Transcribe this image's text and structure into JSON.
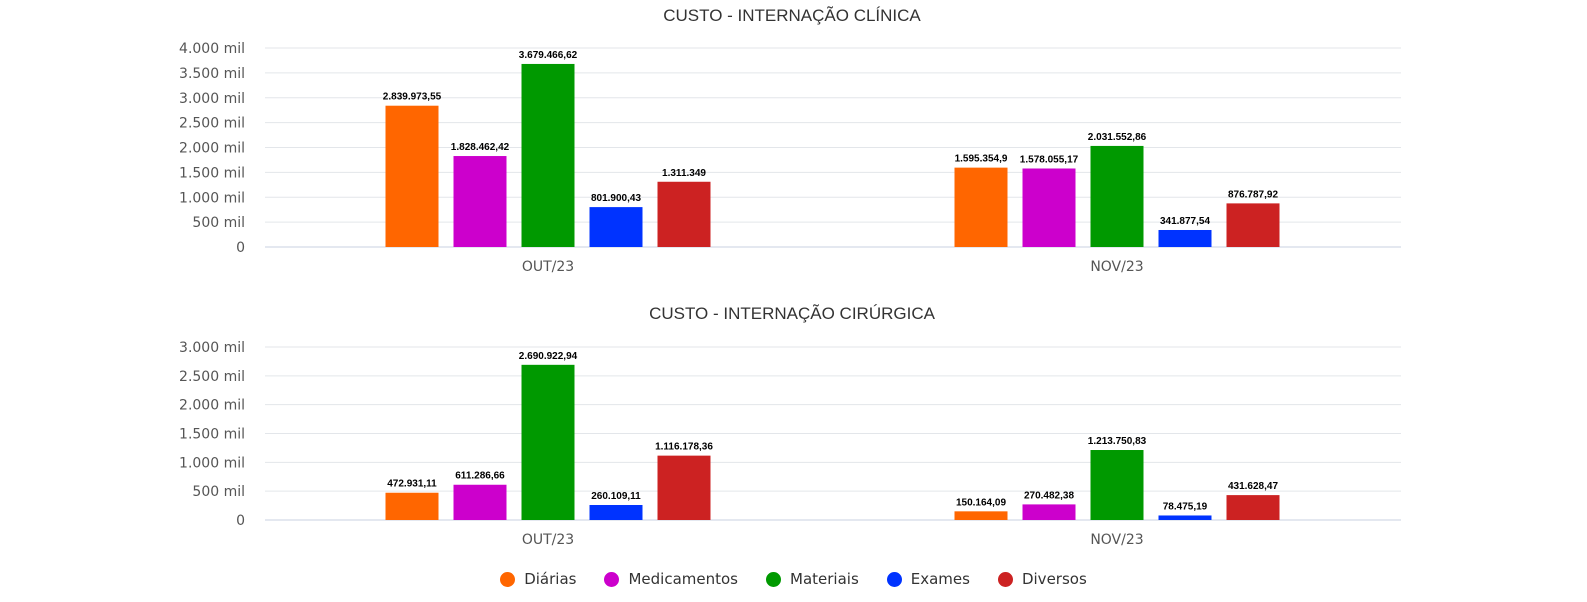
{
  "legend": [
    {
      "name": "Diárias",
      "color": "#ff6600"
    },
    {
      "name": "Medicamentos",
      "color": "#cc00cc"
    },
    {
      "name": "Materiais",
      "color": "#009900"
    },
    {
      "name": "Exames",
      "color": "#0033ff"
    },
    {
      "name": "Diversos",
      "color": "#cc2222"
    }
  ],
  "chart_data": [
    {
      "type": "bar",
      "title": "CUSTO - INTERNAÇÃO CLÍNICA",
      "categories": [
        "OUT/23",
        "NOV/23"
      ],
      "ylim": [
        0,
        4000000
      ],
      "yticks": [
        0,
        500000,
        1000000,
        1500000,
        2000000,
        2500000,
        3000000,
        3500000,
        4000000
      ],
      "ytick_labels": [
        "0",
        "500 mil",
        "1.000 mil",
        "1.500 mil",
        "2.000 mil",
        "2.500 mil",
        "3.000 mil",
        "3.500 mil",
        "4.000 mil"
      ],
      "grid": true,
      "series": [
        {
          "name": "Diárias",
          "color": "#ff6600",
          "values": [
            2839973.55,
            1595354.9
          ],
          "labels": [
            "2.839.973,55",
            "1.595.354,9"
          ]
        },
        {
          "name": "Medicamentos",
          "color": "#cc00cc",
          "values": [
            1828462.42,
            1578055.17
          ],
          "labels": [
            "1.828.462,42",
            "1.578.055,17"
          ]
        },
        {
          "name": "Materiais",
          "color": "#009900",
          "values": [
            3679466.62,
            2031552.86
          ],
          "labels": [
            "3.679.466,62",
            "2.031.552,86"
          ]
        },
        {
          "name": "Exames",
          "color": "#0033ff",
          "values": [
            801900.43,
            341877.54
          ],
          "labels": [
            "801.900,43",
            "341.877,54"
          ]
        },
        {
          "name": "Diversos",
          "color": "#cc2222",
          "values": [
            1311349,
            876787.92
          ],
          "labels": [
            "1.311.349",
            "876.787,92"
          ]
        }
      ]
    },
    {
      "type": "bar",
      "title": "CUSTO - INTERNAÇÃO CIRÚRGICA",
      "categories": [
        "OUT/23",
        "NOV/23"
      ],
      "ylim": [
        0,
        3000000
      ],
      "yticks": [
        0,
        500000,
        1000000,
        1500000,
        2000000,
        2500000,
        3000000
      ],
      "ytick_labels": [
        "0",
        "500 mil",
        "1.000 mil",
        "1.500 mil",
        "2.000 mil",
        "2.500 mil",
        "3.000 mil"
      ],
      "grid": true,
      "series": [
        {
          "name": "Diárias",
          "color": "#ff6600",
          "values": [
            472931.11,
            150164.09
          ],
          "labels": [
            "472.931,11",
            "150.164,09"
          ]
        },
        {
          "name": "Medicamentos",
          "color": "#cc00cc",
          "values": [
            611286.66,
            270482.38
          ],
          "labels": [
            "611.286,66",
            "270.482,38"
          ]
        },
        {
          "name": "Materiais",
          "color": "#009900",
          "values": [
            2690922.94,
            1213750.83
          ],
          "labels": [
            "2.690.922,94",
            "1.213.750,83"
          ]
        },
        {
          "name": "Exames",
          "color": "#0033ff",
          "values": [
            260109.11,
            78475.19
          ],
          "labels": [
            "260.109,11",
            "78.475,19"
          ]
        },
        {
          "name": "Diversos",
          "color": "#cc2222",
          "values": [
            1116178.36,
            431628.47
          ],
          "labels": [
            "1.116.178,36",
            "431.628,47"
          ]
        }
      ]
    }
  ]
}
